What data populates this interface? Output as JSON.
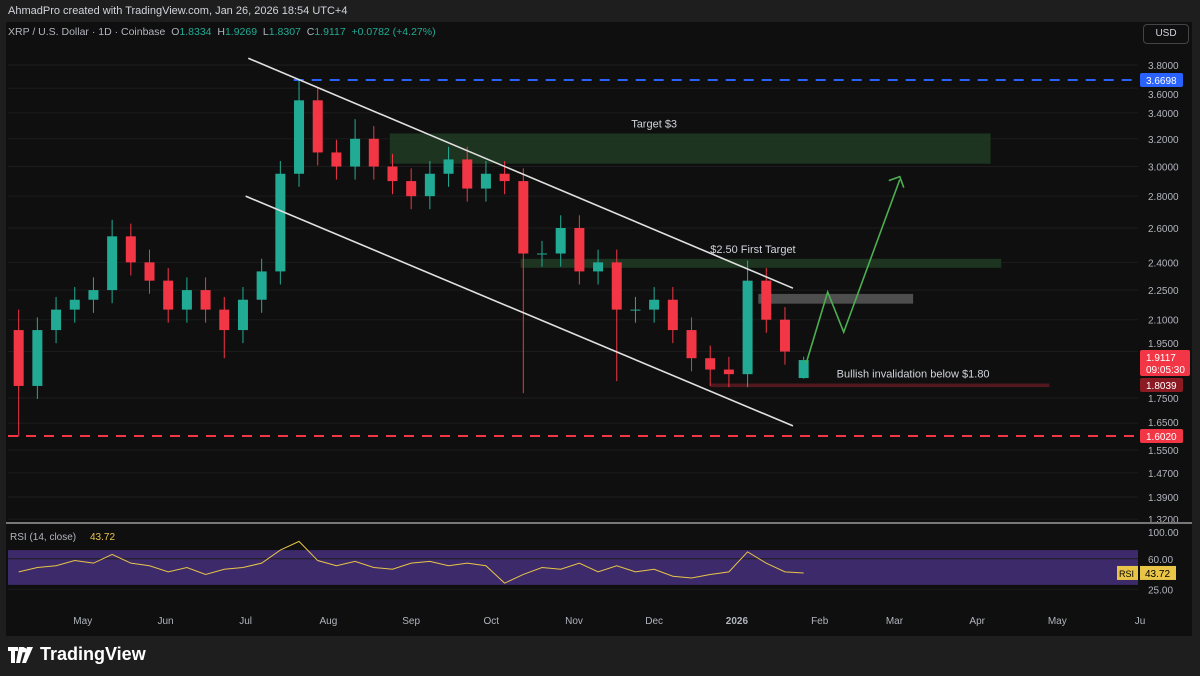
{
  "header": {
    "credit": "AhmadPro created with TradingView.com, Jan 26, 2026 18:54 UTC+4",
    "symbol": "XRP / U.S. Dollar · 1D · Coinbase",
    "o_label": "O",
    "o": "1.8334",
    "h_label": "H",
    "h": "1.9269",
    "l_label": "L",
    "l": "1.8307",
    "c_label": "C",
    "c": "1.9117",
    "change": "+0.0782 (+4.27%)",
    "currency": "USD"
  },
  "footer": {
    "brand": "TradingView"
  },
  "colors": {
    "up": "#22ab94",
    "down": "#f23645",
    "blue": "#2962ff",
    "rsi": "#e8c547",
    "rsi_band": "#3d2a6b",
    "zone_green": "#1f3a22",
    "arrow": "#4caf50"
  },
  "chart_data": {
    "type": "candlestick",
    "scale": "log",
    "ylim": [
      1.32,
      3.8
    ],
    "y_ticks": [
      "3.8000",
      "3.6000",
      "3.4000",
      "3.2000",
      "3.0000",
      "2.8000",
      "2.6000",
      "2.4000",
      "2.2500",
      "2.1000",
      "1.9500",
      "1.7500",
      "1.6500",
      "1.5500",
      "1.4700",
      "1.3900",
      "1.3200"
    ],
    "x_ticks": [
      {
        "d": "2025-05-01",
        "t": "May"
      },
      {
        "d": "2025-06-01",
        "t": "Jun"
      },
      {
        "d": "2025-07-01",
        "t": "Jul"
      },
      {
        "d": "2025-08-01",
        "t": "Aug"
      },
      {
        "d": "2025-09-01",
        "t": "Sep"
      },
      {
        "d": "2025-10-01",
        "t": "Oct"
      },
      {
        "d": "2025-11-01",
        "t": "Nov"
      },
      {
        "d": "2025-12-01",
        "t": "Dec"
      },
      {
        "d": "2026-01-01",
        "t": "2026"
      },
      {
        "d": "2026-02-01",
        "t": "Feb"
      },
      {
        "d": "2026-03-01",
        "t": "Mar"
      },
      {
        "d": "2026-04-01",
        "t": "Apr"
      },
      {
        "d": "2026-05-01",
        "t": "May"
      },
      {
        "d": "2026-06-01",
        "t": "Ju"
      }
    ],
    "candles": [
      {
        "d": "2025-04-07",
        "o": 2.05,
        "h": 2.15,
        "l": 1.6,
        "c": 1.8
      },
      {
        "d": "2025-04-14",
        "c": 2.05
      },
      {
        "d": "2025-04-21",
        "c": 2.15
      },
      {
        "d": "2025-04-28",
        "c": 2.2
      },
      {
        "d": "2025-05-05",
        "c": 2.25
      },
      {
        "d": "2025-05-12",
        "c": 2.55,
        "h": 2.65
      },
      {
        "d": "2025-05-19",
        "c": 2.4
      },
      {
        "d": "2025-05-26",
        "c": 2.3
      },
      {
        "d": "2025-06-02",
        "c": 2.15
      },
      {
        "d": "2025-06-09",
        "c": 2.25
      },
      {
        "d": "2025-06-16",
        "c": 2.15
      },
      {
        "d": "2025-06-23",
        "c": 2.05,
        "l": 1.92
      },
      {
        "d": "2025-06-30",
        "c": 2.2
      },
      {
        "d": "2025-07-07",
        "c": 2.35
      },
      {
        "d": "2025-07-14",
        "c": 2.95
      },
      {
        "d": "2025-07-21",
        "c": 3.5,
        "h": 3.67
      },
      {
        "d": "2025-07-28",
        "c": 3.1
      },
      {
        "d": "2025-08-04",
        "c": 3.0
      },
      {
        "d": "2025-08-11",
        "c": 3.2,
        "h": 3.35
      },
      {
        "d": "2025-08-18",
        "c": 3.0
      },
      {
        "d": "2025-08-25",
        "c": 2.9
      },
      {
        "d": "2025-09-01",
        "c": 2.8
      },
      {
        "d": "2025-09-08",
        "c": 2.95
      },
      {
        "d": "2025-09-15",
        "c": 3.05
      },
      {
        "d": "2025-09-22",
        "c": 2.85
      },
      {
        "d": "2025-09-29",
        "c": 2.95
      },
      {
        "d": "2025-10-06",
        "c": 2.9
      },
      {
        "d": "2025-10-13",
        "c": 2.45,
        "l": 1.77
      },
      {
        "d": "2025-10-20",
        "c": 2.45
      },
      {
        "d": "2025-10-27",
        "c": 2.6
      },
      {
        "d": "2025-11-03",
        "c": 2.35
      },
      {
        "d": "2025-11-10",
        "c": 2.4
      },
      {
        "d": "2025-11-17",
        "c": 2.15,
        "l": 1.82
      },
      {
        "d": "2025-11-24",
        "c": 2.15
      },
      {
        "d": "2025-12-01",
        "c": 2.2
      },
      {
        "d": "2025-12-08",
        "c": 2.05
      },
      {
        "d": "2025-12-15",
        "c": 1.92
      },
      {
        "d": "2025-12-22",
        "c": 1.87,
        "l": 1.8
      },
      {
        "d": "2025-12-29",
        "c": 1.85
      },
      {
        "d": "2026-01-05",
        "c": 2.3,
        "h": 2.41
      },
      {
        "d": "2026-01-12",
        "c": 2.1
      },
      {
        "d": "2026-01-19",
        "c": 1.95
      },
      {
        "d": "2026-01-26",
        "o": 1.8334,
        "h": 1.9269,
        "l": 1.8307,
        "c": 1.9117
      }
    ],
    "price_labels": [
      {
        "price": 3.6698,
        "text": "3.6698",
        "color": "#2962ff",
        "line": "dashed",
        "from": "2025-07-19"
      },
      {
        "price": 1.9117,
        "text": "1.9117",
        "sub": "09:05:30",
        "color": "#f23645"
      },
      {
        "price": 1.8039,
        "text": "1.8039",
        "color": "#8b1a22"
      },
      {
        "price": 1.602,
        "text": "1.6020",
        "color": "#f23645",
        "line": "dashed",
        "from": "2025-04-03"
      }
    ],
    "channel": [
      {
        "from": [
          "2025-07-02",
          3.86
        ],
        "to": [
          "2026-01-22",
          2.26
        ]
      },
      {
        "from": [
          "2025-07-01",
          2.8
        ],
        "to": [
          "2026-01-22",
          1.64
        ]
      }
    ],
    "zones": [
      {
        "from": "2025-08-24",
        "to": "2026-04-06",
        "top": 3.24,
        "bottom": 3.02,
        "color": "#1f3a22",
        "label": "Target $3",
        "label_at": "2025-12-01"
      },
      {
        "from": "2025-10-12",
        "to": "2026-04-10",
        "top": 2.42,
        "bottom": 2.37,
        "color": "#1f3a22",
        "label": "$2.50 First Target",
        "label_at": "2026-01-07"
      },
      {
        "from": "2026-01-09",
        "to": "2026-03-08",
        "top": 2.23,
        "bottom": 2.18,
        "color": "#555555"
      },
      {
        "from": "2025-12-22",
        "to": "2026-04-28",
        "top": 1.81,
        "bottom": 1.795,
        "color": "#5a1a20",
        "label": "Bullish invalidation below $1.80",
        "label_at": "2026-03-08",
        "label_right": true
      }
    ],
    "arrow": [
      [
        "2026-01-27",
        1.9
      ],
      [
        "2026-02-04",
        2.24
      ],
      [
        "2026-02-10",
        2.04
      ],
      [
        "2026-03-03",
        2.91
      ]
    ],
    "rsi": {
      "label": "RSI (14, close)",
      "value": "43.72",
      "tag": "RSI",
      "ticks": [
        "100.00",
        "60.00",
        "25.00"
      ],
      "band": [
        30,
        70
      ],
      "values": [
        45,
        50,
        52,
        58,
        55,
        65,
        55,
        52,
        45,
        50,
        42,
        48,
        50,
        55,
        70,
        80,
        58,
        52,
        57,
        50,
        48,
        55,
        57,
        52,
        55,
        52,
        32,
        42,
        50,
        48,
        55,
        45,
        52,
        45,
        48,
        40,
        38,
        42,
        45,
        68,
        55,
        45,
        43.72
      ]
    }
  }
}
